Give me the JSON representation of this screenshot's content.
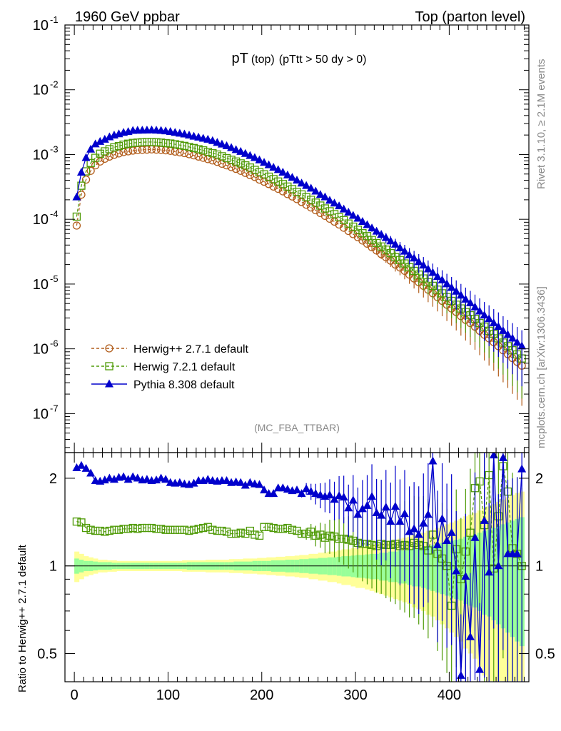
{
  "header": {
    "left": "1960 GeV ppbar",
    "right": "Top (parton level)"
  },
  "side_labels": {
    "rivet": "Rivet 3.1.10, ≥ 2.1M events",
    "mcplots": "mcplots.cern.ch [arXiv:1306.3436]"
  },
  "colors": {
    "herwig27": "#b15c1a",
    "herwig72": "#4e9a06",
    "pythia": "#0000cc",
    "band_inner": "#99ff99",
    "band_outer": "#ffff99"
  },
  "chart_data": [
    {
      "type": "scatter",
      "panel": "main",
      "title": "pT",
      "title_sub1": "(top)",
      "title_sub2": "(pTtt > 50 dy > 0)",
      "watermark": "(MC_FBA_TTBAR)",
      "yscale": "log",
      "ylim": [
        2.5e-08,
        0.1
      ],
      "xlim": [
        -10,
        485
      ],
      "ytick_labels": [
        "10^-7",
        "10^-6",
        "10^-5",
        "10^-4",
        "10^-3",
        "10^-2",
        "10^-1"
      ],
      "legend_position": "bottom-left",
      "x": [
        2.5,
        7.5,
        12.5,
        17.5,
        22.5,
        27.5,
        32.5,
        37.5,
        42.5,
        47.5,
        52.5,
        57.5,
        62.5,
        67.5,
        72.5,
        77.5,
        82.5,
        87.5,
        92.5,
        97.5,
        102.5,
        107.5,
        112.5,
        117.5,
        122.5,
        127.5,
        132.5,
        137.5,
        142.5,
        147.5,
        152.5,
        157.5,
        162.5,
        167.5,
        172.5,
        177.5,
        182.5,
        187.5,
        192.5,
        197.5,
        202.5,
        207.5,
        212.5,
        217.5,
        222.5,
        227.5,
        232.5,
        237.5,
        242.5,
        247.5,
        252.5,
        257.5,
        262.5,
        267.5,
        272.5,
        277.5,
        282.5,
        287.5,
        292.5,
        297.5,
        302.5,
        307.5,
        312.5,
        317.5,
        322.5,
        327.5,
        332.5,
        337.5,
        342.5,
        347.5,
        352.5,
        357.5,
        362.5,
        367.5,
        372.5,
        377.5,
        382.5,
        387.5,
        392.5,
        397.5,
        402.5,
        407.5,
        412.5,
        417.5,
        422.5,
        427.5,
        432.5,
        437.5,
        442.5,
        447.5,
        452.5,
        457.5,
        462.5,
        467.5,
        472.5,
        477.5
      ],
      "series": [
        {
          "name": "Herwig++ 2.7.1 default",
          "marker": "circle",
          "line": "dashed",
          "values": [
            8e-05,
            0.00024,
            0.00041,
            0.00056,
            0.00068,
            0.00078,
            0.00086,
            0.00093,
            0.00099,
            0.00104,
            0.00109,
            0.00112,
            0.00115,
            0.00117,
            0.00118,
            0.00119,
            0.0012,
            0.00119,
            0.00118,
            0.00116,
            0.00114,
            0.00111,
            0.00108,
            0.00105,
            0.00101,
            0.00097,
            0.00093,
            0.00089,
            0.00085,
            0.00081,
            0.00077,
            0.00072,
            0.00068,
            0.00064,
            0.0006,
            0.00056,
            0.00052,
            0.00048,
            0.00045,
            0.00041,
            0.00038,
            0.00035,
            0.00032,
            0.000295,
            0.00027,
            0.000245,
            0.000225,
            0.000205,
            0.000185,
            0.000168,
            0.000152,
            0.000138,
            0.000125,
            0.000113,
            0.000102,
            9.2e-05,
            8.3e-05,
            7.4e-05,
            6.6e-05,
            5.9e-05,
            5.3e-05,
            4.7e-05,
            4.2e-05,
            3.7e-05,
            3.3e-05,
            2.9e-05,
            2.6e-05,
            2.3e-05,
            2e-05,
            1.8e-05,
            1.6e-05,
            1.4e-05,
            1.22e-05,
            1.07e-05,
            9.4e-06,
            8.2e-06,
            7.2e-06,
            6.3e-06,
            5.5e-06,
            4.8e-06,
            4.2e-06,
            3.7e-06,
            3.2e-06,
            2.8e-06,
            2.5e-06,
            2.2e-06,
            1.9e-06,
            1.65e-06,
            1.45e-06,
            1.27e-06,
            1.1e-06,
            9.5e-07,
            8.3e-07,
            7.2e-07,
            6.3e-07,
            5.5e-07
          ],
          "ratio": [
            1,
            1,
            1,
            1,
            1,
            1,
            1,
            1,
            1,
            1,
            1,
            1,
            1,
            1,
            1,
            1,
            1,
            1,
            1,
            1,
            1,
            1,
            1,
            1,
            1,
            1,
            1,
            1,
            1,
            1,
            1,
            1,
            1,
            1,
            1,
            1,
            1,
            1,
            1,
            1,
            1,
            1,
            1,
            1,
            1,
            1,
            1,
            1,
            1,
            1,
            1,
            1,
            1,
            1,
            1,
            1,
            1,
            1,
            1,
            1,
            1,
            1,
            1,
            1,
            1,
            1,
            1,
            1,
            1,
            1,
            1,
            1,
            1,
            1,
            1,
            1,
            1,
            1,
            1,
            1,
            1,
            1,
            1,
            1,
            1,
            1,
            1,
            1,
            1,
            1,
            1,
            1,
            1,
            1,
            1,
            1
          ]
        },
        {
          "name": "Herwig 7.2.1 default",
          "marker": "open-square",
          "line": "dashed",
          "values": [
            0.00011,
            0.00033,
            0.00055,
            0.00074,
            0.00089,
            0.00103,
            0.00112,
            0.00121,
            0.00129,
            0.00135,
            0.00142,
            0.00147,
            0.00151,
            0.00153,
            0.00155,
            0.00156,
            0.00156,
            0.00155,
            0.00153,
            0.0015,
            0.00148,
            0.00144,
            0.0014,
            0.00136,
            0.00131,
            0.00126,
            0.00121,
            0.00116,
            0.0011,
            0.00105,
            0.001,
            0.00094,
            0.00088,
            0.00083,
            0.00078,
            0.00073,
            0.00068,
            0.00063,
            0.00058,
            0.000535,
            0.000495,
            0.000455,
            0.000417,
            0.000383,
            0.00035,
            0.00032,
            0.000292,
            0.000265,
            0.000242,
            0.00022,
            0.0002,
            0.000181,
            0.000163,
            0.000147,
            0.000133,
            0.00012,
            0.000108,
            9.7e-05,
            8.6e-05,
            7.7e-05,
            6.9e-05,
            6.1e-05,
            5.5e-05,
            4.8e-05,
            4.3e-05,
            3.8e-05,
            3.4e-05,
            3e-05,
            2.6e-05,
            2.35e-05,
            2.08e-05,
            1.82e-05,
            1.6e-05,
            1.4e-05,
            1.22e-05,
            1.07e-05,
            9.4e-06,
            8.2e-06,
            7.2e-06,
            6.3e-06,
            5.5e-06,
            4.8e-06,
            4.2e-06,
            3.7e-06,
            3.3e-06,
            2.9e-06,
            2.5e-06,
            2.2e-06,
            1.9e-06,
            1.7e-06,
            1.45e-06,
            1.25e-06,
            1.1e-06,
            9.5e-07,
            8.2e-07,
            7.1e-07
          ],
          "ratio": [
            1.42,
            1.41,
            1.35,
            1.33,
            1.32,
            1.32,
            1.31,
            1.32,
            1.33,
            1.33,
            1.34,
            1.34,
            1.35,
            1.34,
            1.35,
            1.35,
            1.35,
            1.34,
            1.34,
            1.33,
            1.33,
            1.33,
            1.33,
            1.33,
            1.32,
            1.33,
            1.34,
            1.35,
            1.36,
            1.33,
            1.32,
            1.32,
            1.31,
            1.29,
            1.29,
            1.3,
            1.29,
            1.32,
            1.28,
            1.27,
            1.36,
            1.36,
            1.35,
            1.34,
            1.34,
            1.35,
            1.33,
            1.32,
            1.29,
            1.29,
            1.31,
            1.27,
            1.28,
            1.25,
            1.27,
            1.26,
            1.24,
            1.24,
            1.23,
            1.22,
            1.2,
            1.19,
            1.19,
            1.18,
            1.17,
            1.19,
            1.18,
            1.18,
            1.19,
            1.17,
            1.18,
            1.17,
            1.2,
            1.18,
            1.17,
            1.13,
            1.28,
            1.1,
            1.06,
            1.0,
            0.73,
            1.14,
            0.9,
            1.12,
            1.3,
            1.85,
            1.95,
            1.38,
            2.05,
            0.98,
            1.48,
            2.2,
            1.8,
            1.15,
            1.1,
            1.0
          ]
        },
        {
          "name": "Pythia 8.308 default",
          "marker": "filled-triangle",
          "line": "solid",
          "values": [
            0.00022,
            0.00053,
            0.00089,
            0.0012,
            0.00145,
            0.00158,
            0.00171,
            0.00186,
            0.00198,
            0.00207,
            0.00218,
            0.00224,
            0.00234,
            0.00235,
            0.00236,
            0.00237,
            0.00238,
            0.00236,
            0.00234,
            0.0023,
            0.00225,
            0.00218,
            0.00212,
            0.00206,
            0.00198,
            0.0019,
            0.00184,
            0.00177,
            0.00171,
            0.00163,
            0.00153,
            0.00144,
            0.00136,
            0.00127,
            0.00118,
            0.00111,
            0.00103,
            0.00096,
            0.00089,
            0.00082,
            0.00075,
            0.00069,
            0.00063,
            0.00058,
            0.00053,
            0.00048,
            0.00044,
            0.0004,
            0.00036,
            0.00033,
            0.0003,
            0.00027,
            0.00024,
            0.00022,
            0.000195,
            0.000177,
            0.00016,
            0.000143,
            0.000128,
            0.000114,
            0.000103,
            9.2e-05,
            8.2e-05,
            7.3e-05,
            6.5e-05,
            5.8e-05,
            5.2e-05,
            4.6e-05,
            4.1e-05,
            3.6e-05,
            3.2e-05,
            2.8e-05,
            2.5e-05,
            2.2e-05,
            1.95e-05,
            1.7e-05,
            1.5e-05,
            1.3e-05,
            1.15e-05,
            1e-05,
            8.8e-06,
            7.7e-06,
            6.7e-06,
            5.8e-06,
            5.1e-06,
            4.4e-06,
            3.8e-06,
            3.3e-06,
            2.9e-06,
            2.5e-06,
            2.2e-06,
            1.9e-06,
            1.65e-06,
            1.45e-06,
            1.25e-06,
            1.1e-06
          ],
          "ratio": [
            2.17,
            2.21,
            2.16,
            2.08,
            1.96,
            1.95,
            1.97,
            2.0,
            1.98,
            2.01,
            2.02,
            1.98,
            2.02,
            2.0,
            1.97,
            1.98,
            1.96,
            1.97,
            2.0,
            1.98,
            1.93,
            1.92,
            1.93,
            1.91,
            1.9,
            1.92,
            1.96,
            1.96,
            1.98,
            1.96,
            1.95,
            1.96,
            1.96,
            1.93,
            1.94,
            1.93,
            1.89,
            1.93,
            1.91,
            1.9,
            1.82,
            1.77,
            1.77,
            1.85,
            1.85,
            1.83,
            1.81,
            1.82,
            1.77,
            1.84,
            1.8,
            1.77,
            1.75,
            1.73,
            1.75,
            1.69,
            1.74,
            1.72,
            1.58,
            1.68,
            1.5,
            1.57,
            1.61,
            1.73,
            1.52,
            1.49,
            1.59,
            1.42,
            1.6,
            1.42,
            1.51,
            1.31,
            1.34,
            1.28,
            1.4,
            1.5,
            2.29,
            1.18,
            1.45,
            1.22,
            1.3,
            0.96,
            0.42,
            0.92,
            0.57,
            1.25,
            0.44,
            1.43,
            0.95,
            2.4,
            1.0,
            2.35,
            1.1,
            1.1,
            1.1,
            2.15
          ]
        }
      ],
      "reference_band": {
        "x": [
          2.5,
          7.5,
          12.5,
          17.5,
          22.5,
          27.5,
          32.5,
          37.5,
          42.5,
          47.5,
          52.5,
          57.5,
          62.5,
          67.5,
          72.5,
          77.5,
          82.5,
          87.5,
          92.5,
          97.5,
          102.5,
          107.5,
          112.5,
          117.5,
          122.5,
          127.5,
          132.5,
          137.5,
          142.5,
          147.5,
          152.5,
          157.5,
          162.5,
          167.5,
          172.5,
          177.5,
          182.5,
          187.5,
          192.5,
          197.5,
          202.5,
          207.5,
          212.5,
          217.5,
          222.5,
          227.5,
          232.5,
          237.5,
          242.5,
          247.5,
          252.5,
          257.5,
          262.5,
          267.5,
          272.5,
          277.5,
          282.5,
          287.5,
          292.5,
          297.5,
          302.5,
          307.5,
          312.5,
          317.5,
          322.5,
          327.5,
          332.5,
          337.5,
          342.5,
          347.5,
          352.5,
          357.5,
          362.5,
          367.5,
          372.5,
          377.5,
          382.5,
          387.5,
          392.5,
          397.5,
          402.5,
          407.5,
          412.5,
          417.5,
          422.5,
          427.5,
          432.5,
          437.5,
          442.5,
          447.5,
          452.5,
          457.5,
          462.5,
          467.5,
          472.5,
          477.5
        ],
        "inner_halfwidth": [
          0.06,
          0.05,
          0.04,
          0.04,
          0.035,
          0.03,
          0.03,
          0.03,
          0.025,
          0.025,
          0.025,
          0.025,
          0.025,
          0.025,
          0.025,
          0.025,
          0.025,
          0.025,
          0.025,
          0.025,
          0.025,
          0.025,
          0.025,
          0.025,
          0.03,
          0.03,
          0.03,
          0.03,
          0.03,
          0.03,
          0.03,
          0.03,
          0.03,
          0.03,
          0.035,
          0.035,
          0.035,
          0.035,
          0.04,
          0.04,
          0.04,
          0.04,
          0.045,
          0.045,
          0.045,
          0.05,
          0.05,
          0.05,
          0.055,
          0.055,
          0.06,
          0.06,
          0.065,
          0.065,
          0.07,
          0.07,
          0.075,
          0.08,
          0.08,
          0.085,
          0.09,
          0.09,
          0.095,
          0.1,
          0.1,
          0.11,
          0.11,
          0.12,
          0.12,
          0.13,
          0.13,
          0.14,
          0.15,
          0.15,
          0.16,
          0.17,
          0.18,
          0.19,
          0.2,
          0.21,
          0.22,
          0.23,
          0.24,
          0.26,
          0.27,
          0.28,
          0.3,
          0.32,
          0.33,
          0.35,
          0.37,
          0.39,
          0.41,
          0.43,
          0.45,
          0.47
        ],
        "outer_halfwidth": [
          0.12,
          0.1,
          0.08,
          0.07,
          0.06,
          0.05,
          0.05,
          0.045,
          0.045,
          0.04,
          0.04,
          0.04,
          0.04,
          0.04,
          0.04,
          0.04,
          0.04,
          0.04,
          0.04,
          0.04,
          0.04,
          0.04,
          0.04,
          0.045,
          0.045,
          0.045,
          0.045,
          0.045,
          0.05,
          0.05,
          0.05,
          0.05,
          0.05,
          0.055,
          0.055,
          0.055,
          0.06,
          0.06,
          0.06,
          0.065,
          0.065,
          0.07,
          0.07,
          0.075,
          0.075,
          0.08,
          0.08,
          0.085,
          0.09,
          0.09,
          0.1,
          0.1,
          0.11,
          0.11,
          0.12,
          0.12,
          0.13,
          0.14,
          0.14,
          0.15,
          0.16,
          0.16,
          0.17,
          0.18,
          0.19,
          0.2,
          0.21,
          0.22,
          0.23,
          0.24,
          0.25,
          0.26,
          0.28,
          0.29,
          0.3,
          0.32,
          0.33,
          0.35,
          0.37,
          0.39,
          0.41,
          0.43,
          0.45,
          0.48,
          0.5,
          0.52,
          0.55,
          0.58,
          0.6,
          0.63,
          0.66,
          0.69,
          0.72,
          0.75,
          0.78,
          0.8
        ]
      }
    },
    {
      "type": "scatter",
      "panel": "ratio",
      "ylabel": "Ratio to Herwig++ 2.7.1 default",
      "yscale": "log",
      "ylim": [
        0.4,
        2.45
      ],
      "xlim": [
        -10,
        485
      ],
      "ytick_labels": [
        "0.5",
        "1",
        "2"
      ],
      "xtick_labels": [
        "0",
        "100",
        "200",
        "300",
        "400"
      ],
      "xticks": [
        0,
        100,
        200,
        300,
        400
      ]
    }
  ]
}
